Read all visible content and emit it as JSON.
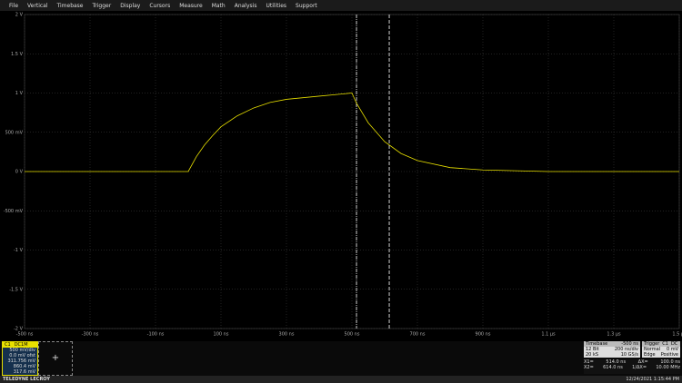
{
  "menu": [
    "File",
    "Vertical",
    "Timebase",
    "Trigger",
    "Display",
    "Cursors",
    "Measure",
    "Math",
    "Analysis",
    "Utilities",
    "Support"
  ],
  "chart_data": {
    "type": "line",
    "color": "#e8e000",
    "x": [
      -500,
      -100,
      0,
      25,
      50,
      75,
      100,
      150,
      200,
      250,
      300,
      350,
      400,
      450,
      500,
      514,
      550,
      600,
      650,
      700,
      800,
      900,
      1000,
      1100,
      1500
    ],
    "values": [
      0,
      0,
      0,
      0.19,
      0.34,
      0.46,
      0.57,
      0.71,
      0.81,
      0.88,
      0.92,
      0.94,
      0.96,
      0.98,
      1.0,
      0.87,
      0.62,
      0.38,
      0.23,
      0.14,
      0.05,
      0.02,
      0.01,
      0,
      0
    ],
    "xlim": [
      -500,
      1500
    ],
    "ylim": [
      -2,
      2
    ],
    "xticks": [
      {
        "value": -500,
        "label": "-500 ns"
      },
      {
        "value": -300,
        "label": "-300 ns"
      },
      {
        "value": -100,
        "label": "-100 ns"
      },
      {
        "value": 100,
        "label": "100 ns"
      },
      {
        "value": 300,
        "label": "300 ns"
      },
      {
        "value": 500,
        "label": "500 ns"
      },
      {
        "value": 700,
        "label": "700 ns"
      },
      {
        "value": 900,
        "label": "900 ns"
      },
      {
        "value": 1100,
        "label": "1.1 µs"
      },
      {
        "value": 1300,
        "label": "1.3 µs"
      },
      {
        "value": 1500,
        "label": "1.5 µs"
      }
    ],
    "yticks": [
      {
        "value": 2,
        "label": "2 V"
      },
      {
        "value": 1.5,
        "label": "1.5 V"
      },
      {
        "value": 1,
        "label": "1 V"
      },
      {
        "value": 0.5,
        "label": "500 mV"
      },
      {
        "value": 0,
        "label": "0 V"
      },
      {
        "value": -0.5,
        "label": "-500 mV"
      },
      {
        "value": -1,
        "label": "-1 V"
      },
      {
        "value": -1.5,
        "label": "-1.5 V"
      },
      {
        "value": -2,
        "label": "-2 V"
      }
    ],
    "cursors_x": [
      514,
      614
    ],
    "grid": true
  },
  "channel": {
    "name": "C1",
    "coupling": "DC1M",
    "lines": [
      "500 mV/div",
      "0.0 mV ofst",
      "311.756 mV",
      "860.4 mV",
      "317.6 mV"
    ]
  },
  "timebase": {
    "title": "Timebase",
    "delay": "-500 ns",
    "rows": [
      [
        "12 Bit",
        "200 ns/div"
      ],
      [
        "20 kS",
        "10 GS/s"
      ]
    ]
  },
  "trigger": {
    "title": "Trigger",
    "source": "C1",
    "coupling": "DC",
    "rows": [
      [
        "Normal",
        "0 mV"
      ],
      [
        "Edge",
        "Positive"
      ]
    ]
  },
  "readout": {
    "rows": [
      [
        "X1=",
        "514.0 ns",
        "ΔX=",
        "100.0 ns"
      ],
      [
        "X2=",
        "614.0 ns",
        "1/ΔX=",
        "10.00 MHz"
      ]
    ]
  },
  "footer": {
    "brand": "TELEDYNE LECROY",
    "datetime": "12/24/2021 1:15:44 PM"
  }
}
